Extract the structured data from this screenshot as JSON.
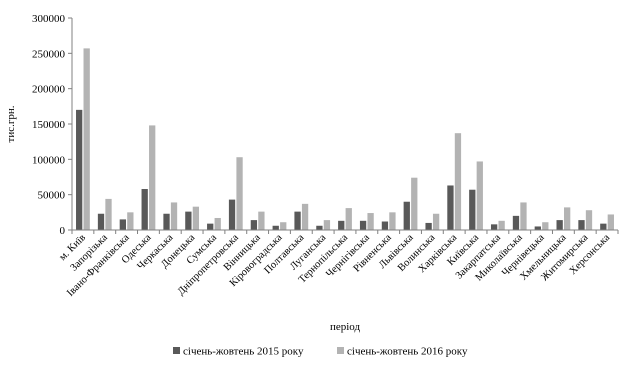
{
  "chart_data": {
    "type": "bar",
    "title": "",
    "xlabel": "період",
    "ylabel": "тис.грн.",
    "ylim": [
      0,
      300000
    ],
    "yticks": [
      0,
      50000,
      100000,
      150000,
      200000,
      250000,
      300000
    ],
    "ytick_labels": [
      "0",
      "50000",
      "100000",
      "150000",
      "200000",
      "250000",
      "300000"
    ],
    "grid": false,
    "legend_position": "bottom",
    "categories": [
      "м. Київ",
      "Запорізька",
      "Івано-Франківська",
      "Одеська",
      "Черкаська",
      "Донецька",
      "Сумська",
      "Дніпропетровська",
      "Вінницька",
      "Кіровоградська",
      "Полтавська",
      "Луганська",
      "Тернопільська",
      "Чернігівська",
      "Рівненська",
      "Львівська",
      "Волинська",
      "Харківська",
      "Київська",
      "Закарпатська",
      "Миколаївська",
      "Чернівецька",
      "Хмельницька",
      "Житомирська",
      "Херсонська"
    ],
    "series": [
      {
        "name": "січень-жовтень 2015 року",
        "color": "#595959",
        "values": [
          170000,
          23000,
          15000,
          58000,
          23000,
          26000,
          9000,
          43000,
          14000,
          6000,
          26000,
          6000,
          13000,
          13000,
          12000,
          40000,
          10000,
          63000,
          57000,
          8000,
          20000,
          5000,
          14000,
          14000,
          9000
        ]
      },
      {
        "name": "січень-жовтень 2016 року",
        "color": "#b3b3b3",
        "values": [
          257000,
          44000,
          25000,
          148000,
          39000,
          33000,
          17000,
          103000,
          26000,
          11000,
          37000,
          14000,
          31000,
          24000,
          25000,
          74000,
          23000,
          137000,
          97000,
          13000,
          39000,
          11000,
          32000,
          28000,
          22000
        ]
      }
    ]
  }
}
